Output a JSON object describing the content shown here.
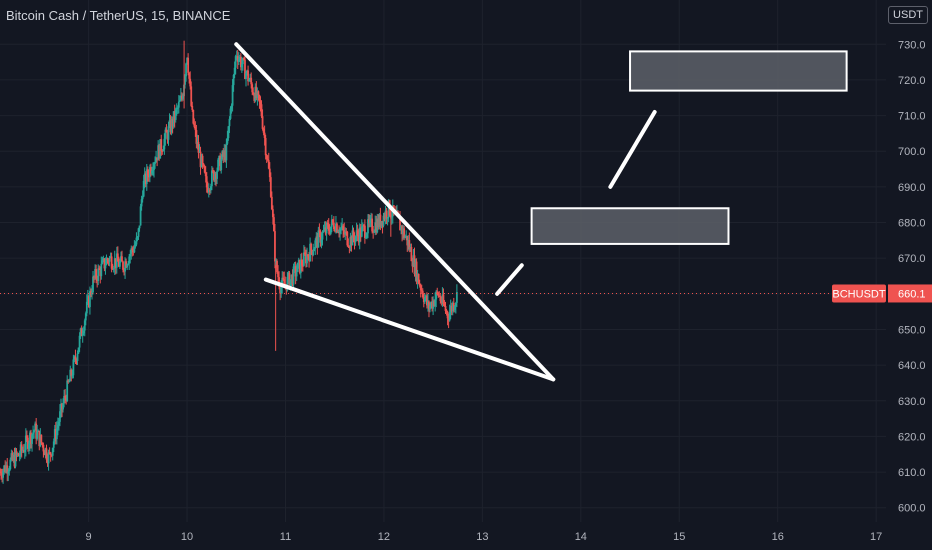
{
  "header": {
    "title": "Bitcoin Cash / TetherUS, 15, BINANCE",
    "currency": "USDT"
  },
  "colors": {
    "background": "#131722",
    "up": "#26a69a",
    "down": "#ef5350",
    "drawing": "#ffffff",
    "grid": "#1e222d"
  },
  "chart_data": {
    "type": "candlestick",
    "symbol": "BCHUSDT",
    "last_price": "660.1",
    "x_ticks": [
      "9",
      "10",
      "11",
      "12",
      "13",
      "14",
      "15",
      "16",
      "17"
    ],
    "y_ticks": [
      "600.0",
      "610.0",
      "620.0",
      "630.0",
      "640.0",
      "650.0",
      "660.0",
      "670.0",
      "680.0",
      "690.0",
      "700.0",
      "710.0",
      "720.0",
      "730.0"
    ],
    "ylim": [
      596,
      734
    ],
    "xlim": [
      8.1,
      17.1
    ],
    "price_path": [
      [
        8.1,
        610
      ],
      [
        8.3,
        615
      ],
      [
        8.45,
        622
      ],
      [
        8.6,
        614
      ],
      [
        8.75,
        630
      ],
      [
        8.85,
        640
      ],
      [
        8.95,
        652
      ],
      [
        9.05,
        664
      ],
      [
        9.2,
        670
      ],
      [
        9.35,
        668
      ],
      [
        9.5,
        675
      ],
      [
        9.55,
        690
      ],
      [
        9.65,
        697
      ],
      [
        9.75,
        702
      ],
      [
        9.85,
        708
      ],
      [
        9.95,
        715
      ],
      [
        10.0,
        728
      ],
      [
        10.05,
        710
      ],
      [
        10.1,
        702
      ],
      [
        10.2,
        690
      ],
      [
        10.3,
        695
      ],
      [
        10.4,
        700
      ],
      [
        10.5,
        728
      ],
      [
        10.6,
        722
      ],
      [
        10.75,
        712
      ],
      [
        10.85,
        690
      ],
      [
        10.9,
        668
      ],
      [
        10.95,
        662
      ],
      [
        11.05,
        664
      ],
      [
        11.2,
        670
      ],
      [
        11.35,
        676
      ],
      [
        11.5,
        680
      ],
      [
        11.65,
        675
      ],
      [
        11.8,
        678
      ],
      [
        11.95,
        680
      ],
      [
        12.05,
        684
      ],
      [
        12.15,
        680
      ],
      [
        12.25,
        674
      ],
      [
        12.35,
        664
      ],
      [
        12.45,
        656
      ],
      [
        12.55,
        660
      ],
      [
        12.65,
        654
      ],
      [
        12.75,
        660
      ]
    ],
    "wicks": [
      {
        "x": 9.97,
        "high": 731,
        "low": 712
      },
      {
        "x": 10.9,
        "high": 668,
        "low": 644
      },
      {
        "x": 12.07,
        "high": 685,
        "low": 676
      }
    ],
    "drawings": {
      "wedge_upper": [
        [
          10.5,
          730
        ],
        [
          13.72,
          636
        ]
      ],
      "wedge_lower": [
        [
          10.8,
          664
        ],
        [
          13.72,
          636
        ]
      ],
      "target_path": [
        [
          13.15,
          660
        ],
        [
          13.4,
          668
        ]
      ],
      "target_path_2": [
        [
          14.3,
          690
        ],
        [
          14.75,
          711
        ]
      ],
      "target_box_1": {
        "x": [
          13.5,
          15.5
        ],
        "y": [
          674,
          684
        ]
      },
      "target_box_2": {
        "x": [
          14.5,
          16.7
        ],
        "y": [
          717,
          728
        ]
      }
    }
  }
}
